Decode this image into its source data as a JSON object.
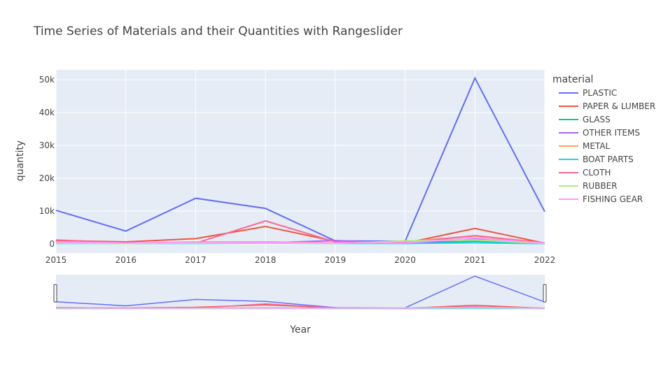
{
  "chart_data": {
    "type": "line",
    "title": "Time Series of Materials and their Quantities with Rangeslider",
    "xlabel": "Year",
    "ylabel": "quantity",
    "x": [
      2015,
      2016,
      2017,
      2018,
      2019,
      2020,
      2021,
      2022
    ],
    "xlim": [
      2015,
      2022
    ],
    "ylim": [
      -2800,
      53000
    ],
    "yticks": [
      0,
      10000,
      20000,
      30000,
      40000,
      50000
    ],
    "ytick_labels": [
      "0",
      "10k",
      "20k",
      "30k",
      "40k",
      "50k"
    ],
    "xtick_labels": [
      "2015",
      "2016",
      "2017",
      "2018",
      "2019",
      "2020",
      "2021",
      "2022"
    ],
    "legend_title": "material",
    "legend_position": "right",
    "grid": true,
    "rangeslider": true,
    "plot_bg": "#E5ECF6",
    "series": [
      {
        "name": "PLASTIC",
        "color": "#636EFA",
        "values": [
          10200,
          3900,
          13900,
          10800,
          900,
          800,
          50500,
          9800
        ]
      },
      {
        "name": "PAPER & LUMBER",
        "color": "#EF553B",
        "values": [
          1000,
          600,
          1600,
          5300,
          800,
          200,
          4700,
          200
        ]
      },
      {
        "name": "GLASS",
        "color": "#00CC96",
        "values": [
          200,
          200,
          300,
          600,
          200,
          200,
          800,
          100
        ]
      },
      {
        "name": "OTHER ITEMS",
        "color": "#AB63FA",
        "values": [
          300,
          200,
          400,
          300,
          1000,
          100,
          1400,
          200
        ]
      },
      {
        "name": "METAL",
        "color": "#FFA15A",
        "values": [
          300,
          200,
          600,
          600,
          300,
          700,
          2400,
          200
        ]
      },
      {
        "name": "BOAT PARTS",
        "color": "#19D3F3",
        "values": [
          100,
          100,
          100,
          200,
          100,
          100,
          300,
          50
        ]
      },
      {
        "name": "CLOTH",
        "color": "#FF6692",
        "values": [
          1200,
          300,
          200,
          7000,
          600,
          400,
          2500,
          300
        ]
      },
      {
        "name": "RUBBER",
        "color": "#B6E880",
        "values": [
          200,
          100,
          200,
          300,
          100,
          900,
          1200,
          100
        ]
      },
      {
        "name": "FISHING GEAR",
        "color": "#FF97FF",
        "values": [
          500,
          300,
          500,
          400,
          300,
          300,
          1800,
          200
        ]
      }
    ]
  }
}
